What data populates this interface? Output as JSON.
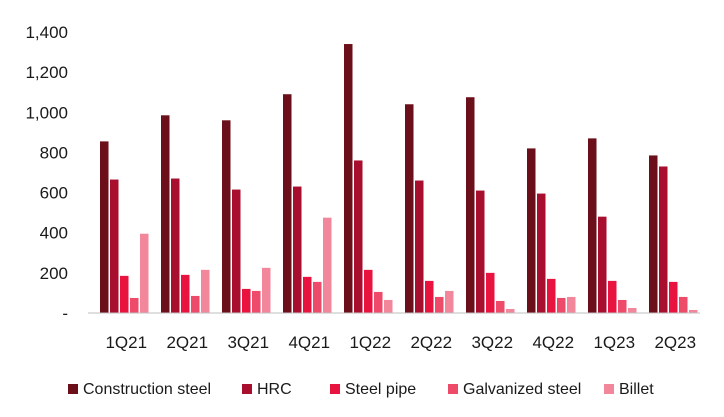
{
  "chart_data": {
    "type": "bar",
    "title": "",
    "xlabel": "",
    "ylabel": "",
    "categories": [
      "1Q21",
      "2Q21",
      "3Q21",
      "4Q21",
      "1Q22",
      "2Q22",
      "3Q22",
      "4Q22",
      "1Q23",
      "2Q23"
    ],
    "ylim": [
      0,
      1400
    ],
    "yticks": [
      0,
      200,
      400,
      600,
      800,
      1000,
      1200,
      1400
    ],
    "ytick_labels": [
      "-",
      "200",
      "400",
      "600",
      "800",
      "1,000",
      "1,200",
      "1,400"
    ],
    "grid": false,
    "legend_position": "bottom",
    "series": [
      {
        "name": "Construction steel",
        "color": "#6b0f1a",
        "values": [
          855,
          985,
          960,
          1090,
          1340,
          1040,
          1075,
          820,
          870,
          785
        ]
      },
      {
        "name": "HRC",
        "color": "#a80f2e",
        "values": [
          665,
          670,
          615,
          630,
          760,
          660,
          610,
          595,
          480,
          730
        ]
      },
      {
        "name": "Steel pipe",
        "color": "#e8133f",
        "values": [
          185,
          190,
          120,
          180,
          215,
          160,
          200,
          170,
          160,
          155
        ]
      },
      {
        "name": "Galvanized steel",
        "color": "#ee4a6a",
        "values": [
          75,
          85,
          110,
          155,
          105,
          80,
          60,
          75,
          65,
          80
        ]
      },
      {
        "name": "Billet",
        "color": "#f2879c",
        "values": [
          395,
          215,
          225,
          475,
          65,
          110,
          20,
          80,
          25,
          15
        ]
      }
    ]
  }
}
